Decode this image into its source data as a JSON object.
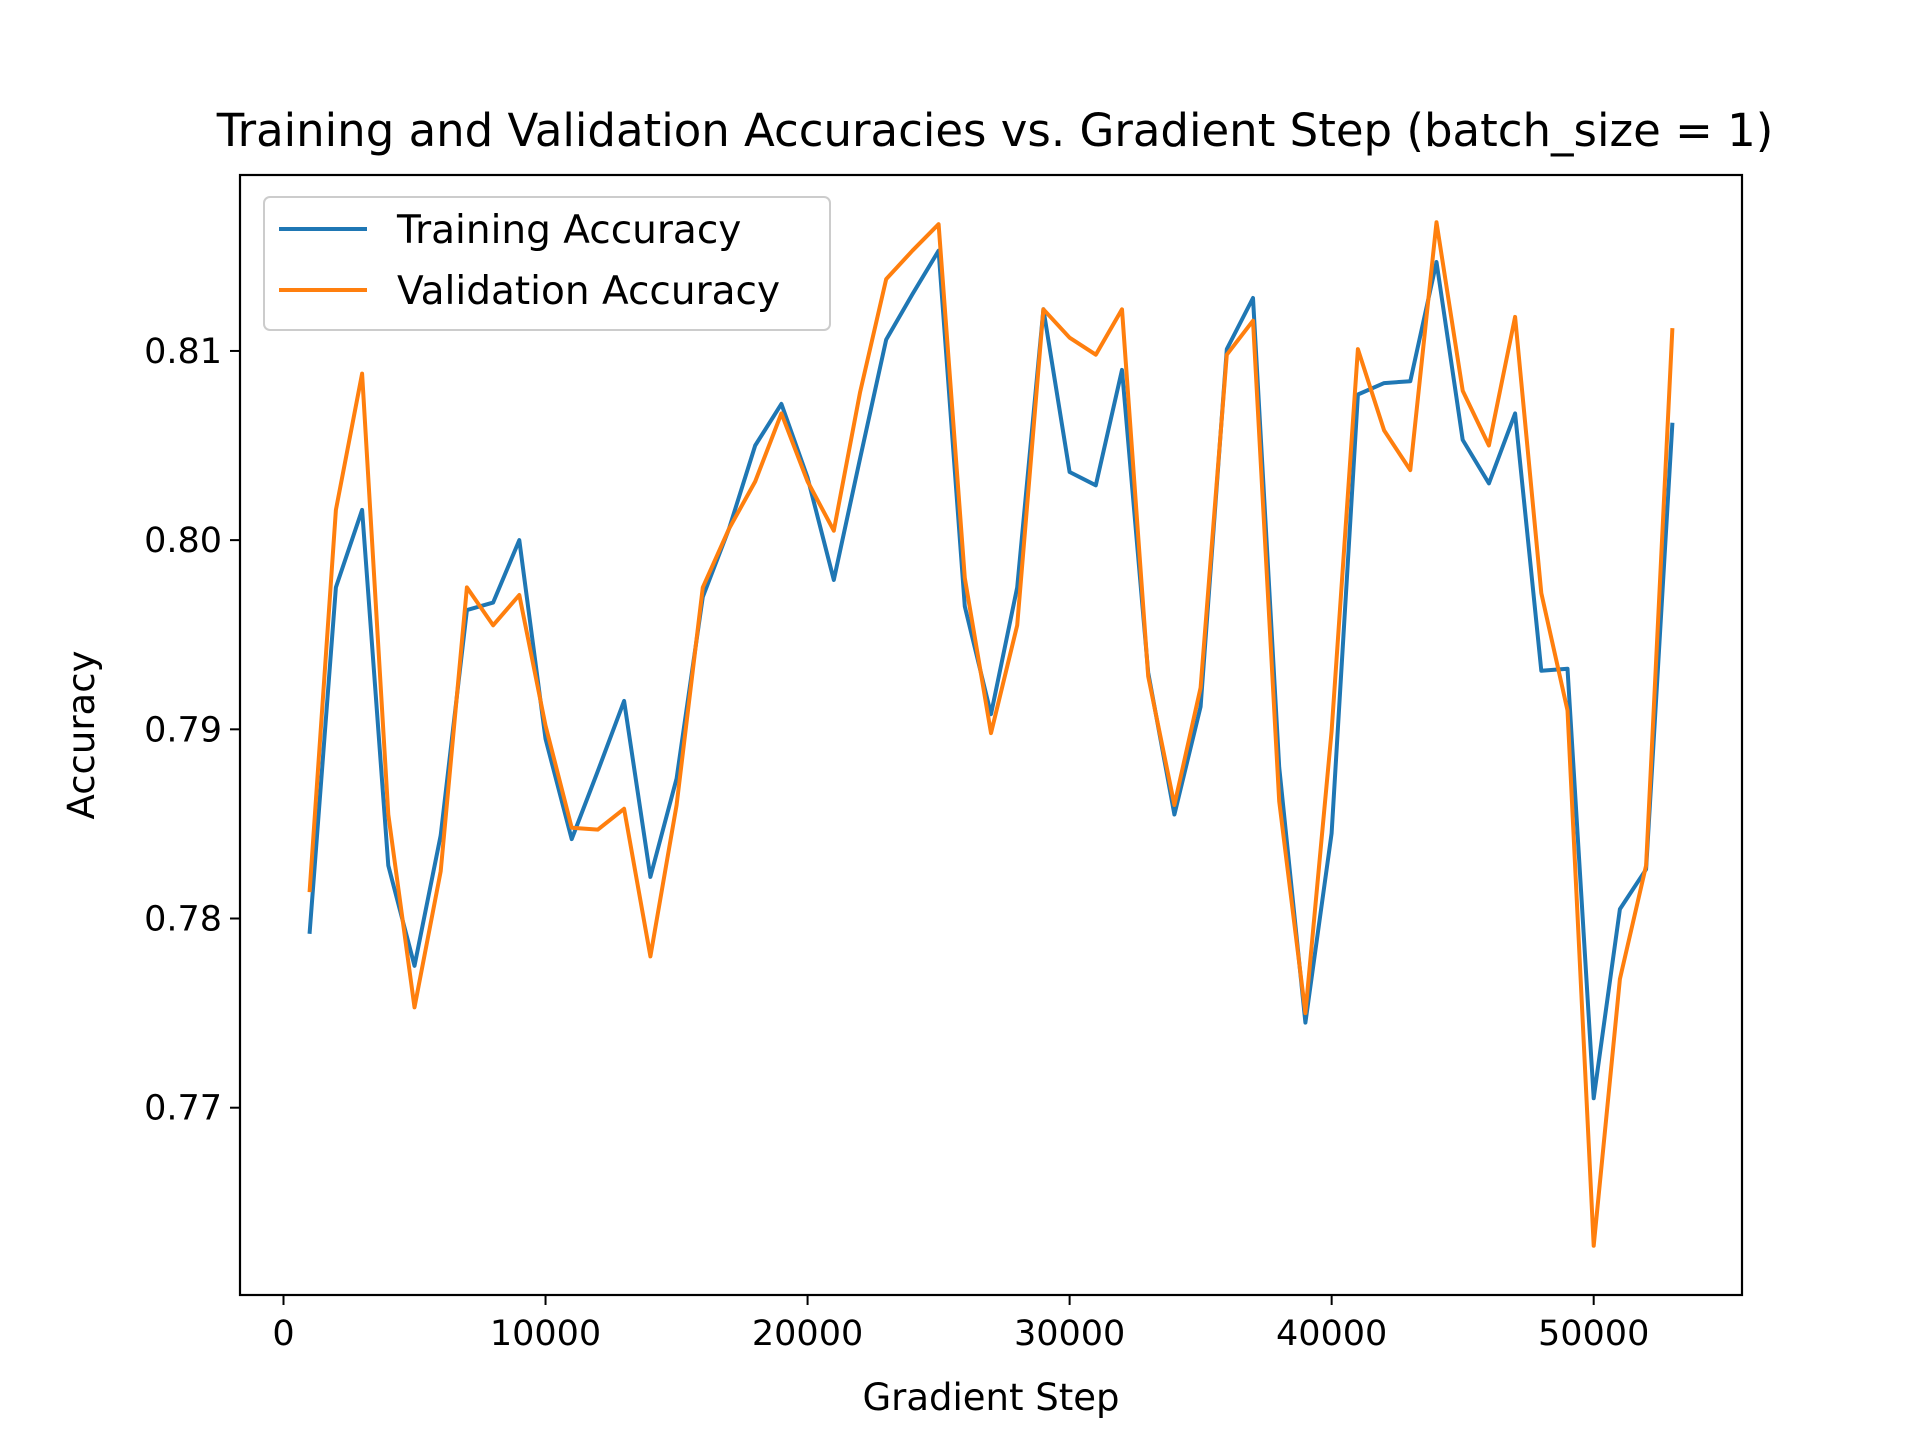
{
  "colors": {
    "background": "#ffffff",
    "axes": "#000000",
    "training": "#1f77b4",
    "validation": "#ff7f0e",
    "legend_border": "#cccccc"
  },
  "chart_data": {
    "type": "line",
    "title": "Training and Validation Accuracies vs. Gradient Step (batch_size = 1)",
    "xlabel": "Gradient Step",
    "ylabel": "Accuracy",
    "xlim": [
      -1660,
      55660
    ],
    "ylim": [
      0.7601,
      0.8193
    ],
    "xticks": [
      0,
      10000,
      20000,
      30000,
      40000,
      50000
    ],
    "xtick_labels": [
      "0",
      "10000",
      "20000",
      "30000",
      "40000",
      "50000"
    ],
    "yticks": [
      0.77,
      0.78,
      0.79,
      0.8,
      0.81
    ],
    "ytick_labels": [
      "0.77",
      "0.78",
      "0.79",
      "0.80",
      "0.81"
    ],
    "grid": false,
    "legend_position": "upper left",
    "x": [
      1000,
      2000,
      3000,
      4000,
      5000,
      6000,
      7000,
      8000,
      9000,
      10000,
      11000,
      12000,
      13000,
      14000,
      15000,
      16000,
      17000,
      18000,
      19000,
      20000,
      21000,
      22000,
      23000,
      24000,
      25000,
      26000,
      27000,
      28000,
      29000,
      30000,
      31000,
      32000,
      33000,
      34000,
      35000,
      36000,
      37000,
      38000,
      39000,
      40000,
      41000,
      42000,
      43000,
      44000,
      45000,
      46000,
      47000,
      48000,
      49000,
      50000,
      51000,
      52000,
      53000
    ],
    "series": [
      {
        "name": "Training Accuracy",
        "color": "#1f77b4",
        "values": [
          0.7793,
          0.7975,
          0.8016,
          0.7828,
          0.7775,
          0.7844,
          0.7963,
          0.7967,
          0.8,
          0.7895,
          0.7842,
          0.7878,
          0.7915,
          0.7822,
          0.7874,
          0.797,
          0.8006,
          0.805,
          0.8072,
          0.8033,
          0.7979,
          0.8043,
          0.8106,
          0.813,
          0.8153,
          0.7965,
          0.7908,
          0.7975,
          0.8122,
          0.8036,
          0.8029,
          0.809,
          0.793,
          0.7855,
          0.7912,
          0.8101,
          0.8128,
          0.788,
          0.7745,
          0.7845,
          0.8077,
          0.8083,
          0.8084,
          0.8147,
          0.8053,
          0.803,
          0.8067,
          0.7931,
          0.7932,
          0.7705,
          0.7805,
          0.7826,
          0.8061
        ]
      },
      {
        "name": "Validation Accuracy",
        "color": "#ff7f0e",
        "values": [
          0.7815,
          0.8016,
          0.8088,
          0.7855,
          0.7753,
          0.7825,
          0.7975,
          0.7955,
          0.7971,
          0.7902,
          0.7848,
          0.7847,
          0.7858,
          0.778,
          0.786,
          0.7975,
          0.8006,
          0.8031,
          0.8067,
          0.8031,
          0.8005,
          0.8078,
          0.8138,
          0.8153,
          0.8167,
          0.798,
          0.7898,
          0.7955,
          0.8122,
          0.8107,
          0.8098,
          0.8122,
          0.7928,
          0.786,
          0.7922,
          0.8098,
          0.8116,
          0.7862,
          0.775,
          0.7899,
          0.8101,
          0.8058,
          0.8037,
          0.8168,
          0.8079,
          0.805,
          0.8118,
          0.7972,
          0.791,
          0.7627,
          0.7768,
          0.7828,
          0.8111
        ]
      }
    ]
  }
}
